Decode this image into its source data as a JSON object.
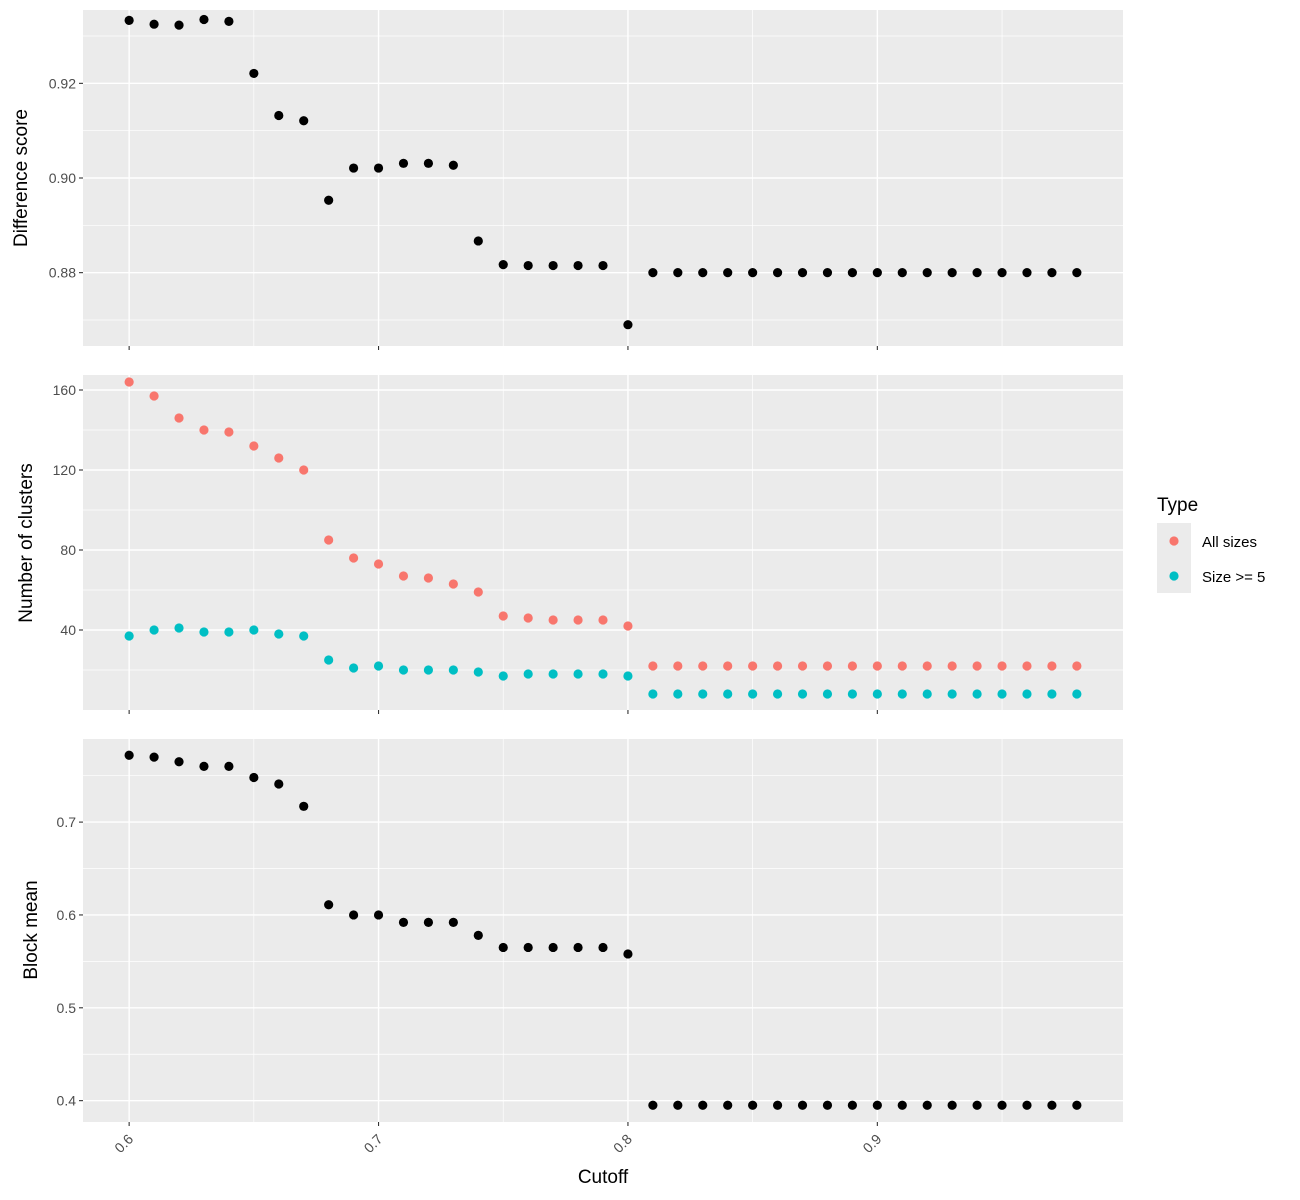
{
  "chart_data": [
    {
      "type": "scatter",
      "ylabel": "Difference score",
      "ylim": [
        0.8645,
        0.9355
      ],
      "y_ticks": [
        "0.88",
        "0.90",
        "0.92"
      ],
      "grid": true,
      "series": [
        {
          "color": "#000000",
          "points": [
            [
              0.6,
              0.9333
            ],
            [
              0.61,
              0.9325
            ],
            [
              0.62,
              0.9323
            ],
            [
              0.63,
              0.9335
            ],
            [
              0.64,
              0.9331
            ],
            [
              0.65,
              0.9221
            ],
            [
              0.66,
              0.9132
            ],
            [
              0.67,
              0.9121
            ],
            [
              0.68,
              0.8953
            ],
            [
              0.69,
              0.9021
            ],
            [
              0.7,
              0.9021
            ],
            [
              0.71,
              0.9031
            ],
            [
              0.72,
              0.9031
            ],
            [
              0.73,
              0.9027
            ],
            [
              0.74,
              0.8867
            ],
            [
              0.75,
              0.8817
            ],
            [
              0.76,
              0.8815
            ],
            [
              0.77,
              0.8815
            ],
            [
              0.78,
              0.8815
            ],
            [
              0.79,
              0.8815
            ],
            [
              0.8,
              0.869
            ],
            [
              0.81,
              0.88
            ],
            [
              0.82,
              0.88
            ],
            [
              0.83,
              0.88
            ],
            [
              0.84,
              0.88
            ],
            [
              0.85,
              0.88
            ],
            [
              0.86,
              0.88
            ],
            [
              0.87,
              0.88
            ],
            [
              0.88,
              0.88
            ],
            [
              0.89,
              0.88
            ],
            [
              0.9,
              0.88
            ],
            [
              0.91,
              0.88
            ],
            [
              0.92,
              0.88
            ],
            [
              0.93,
              0.88
            ],
            [
              0.94,
              0.88
            ],
            [
              0.95,
              0.88
            ],
            [
              0.96,
              0.88
            ],
            [
              0.97,
              0.88
            ],
            [
              0.98,
              0.88
            ]
          ]
        }
      ]
    },
    {
      "type": "scatter",
      "ylabel": "Number of clusters",
      "ylim": [
        0,
        167.5
      ],
      "y_ticks": [
        "40",
        "80",
        "120",
        "160"
      ],
      "grid": true,
      "series": [
        {
          "name": "All sizes",
          "color": "#F8766D",
          "points": [
            [
              0.6,
              164
            ],
            [
              0.61,
              157
            ],
            [
              0.62,
              146
            ],
            [
              0.63,
              140
            ],
            [
              0.64,
              139
            ],
            [
              0.65,
              132
            ],
            [
              0.66,
              126
            ],
            [
              0.67,
              120
            ],
            [
              0.68,
              85
            ],
            [
              0.69,
              76
            ],
            [
              0.7,
              73
            ],
            [
              0.71,
              67
            ],
            [
              0.72,
              66
            ],
            [
              0.73,
              63
            ],
            [
              0.74,
              59
            ],
            [
              0.75,
              47
            ],
            [
              0.76,
              46
            ],
            [
              0.77,
              45
            ],
            [
              0.78,
              45
            ],
            [
              0.79,
              45
            ],
            [
              0.8,
              42
            ],
            [
              0.81,
              22
            ],
            [
              0.82,
              22
            ],
            [
              0.83,
              22
            ],
            [
              0.84,
              22
            ],
            [
              0.85,
              22
            ],
            [
              0.86,
              22
            ],
            [
              0.87,
              22
            ],
            [
              0.88,
              22
            ],
            [
              0.89,
              22
            ],
            [
              0.9,
              22
            ],
            [
              0.91,
              22
            ],
            [
              0.92,
              22
            ],
            [
              0.93,
              22
            ],
            [
              0.94,
              22
            ],
            [
              0.95,
              22
            ],
            [
              0.96,
              22
            ],
            [
              0.97,
              22
            ],
            [
              0.98,
              22
            ]
          ]
        },
        {
          "name": "Size >= 5",
          "color": "#00BFC4",
          "points": [
            [
              0.6,
              37
            ],
            [
              0.61,
              40
            ],
            [
              0.62,
              41
            ],
            [
              0.63,
              39
            ],
            [
              0.64,
              39
            ],
            [
              0.65,
              40
            ],
            [
              0.66,
              38
            ],
            [
              0.67,
              37
            ],
            [
              0.68,
              25
            ],
            [
              0.69,
              21
            ],
            [
              0.7,
              22
            ],
            [
              0.71,
              20
            ],
            [
              0.72,
              20
            ],
            [
              0.73,
              20
            ],
            [
              0.74,
              19
            ],
            [
              0.75,
              17
            ],
            [
              0.76,
              18
            ],
            [
              0.77,
              18
            ],
            [
              0.78,
              18
            ],
            [
              0.79,
              18
            ],
            [
              0.8,
              17
            ],
            [
              0.81,
              8
            ],
            [
              0.82,
              8
            ],
            [
              0.83,
              8
            ],
            [
              0.84,
              8
            ],
            [
              0.85,
              8
            ],
            [
              0.86,
              8
            ],
            [
              0.87,
              8
            ],
            [
              0.88,
              8
            ],
            [
              0.89,
              8
            ],
            [
              0.9,
              8
            ],
            [
              0.91,
              8
            ],
            [
              0.92,
              8
            ],
            [
              0.93,
              8
            ],
            [
              0.94,
              8
            ],
            [
              0.95,
              8
            ],
            [
              0.96,
              8
            ],
            [
              0.97,
              8
            ],
            [
              0.98,
              8
            ]
          ]
        }
      ]
    },
    {
      "type": "scatter",
      "ylabel": "Block mean",
      "xlabel": "Cutoff",
      "ylim": [
        0.377,
        0.7895
      ],
      "y_ticks": [
        "0.4",
        "0.5",
        "0.6",
        "0.7"
      ],
      "grid": true,
      "series": [
        {
          "color": "#000000",
          "points": [
            [
              0.6,
              0.772
            ],
            [
              0.61,
              0.77
            ],
            [
              0.62,
              0.765
            ],
            [
              0.63,
              0.76
            ],
            [
              0.64,
              0.76
            ],
            [
              0.65,
              0.748
            ],
            [
              0.66,
              0.741
            ],
            [
              0.67,
              0.717
            ],
            [
              0.68,
              0.611
            ],
            [
              0.69,
              0.6
            ],
            [
              0.7,
              0.6
            ],
            [
              0.71,
              0.592
            ],
            [
              0.72,
              0.592
            ],
            [
              0.73,
              0.592
            ],
            [
              0.74,
              0.578
            ],
            [
              0.75,
              0.565
            ],
            [
              0.76,
              0.565
            ],
            [
              0.77,
              0.565
            ],
            [
              0.78,
              0.565
            ],
            [
              0.79,
              0.565
            ],
            [
              0.8,
              0.558
            ],
            [
              0.81,
              0.395
            ],
            [
              0.82,
              0.395
            ],
            [
              0.83,
              0.395
            ],
            [
              0.84,
              0.395
            ],
            [
              0.85,
              0.395
            ],
            [
              0.86,
              0.395
            ],
            [
              0.87,
              0.395
            ],
            [
              0.88,
              0.395
            ],
            [
              0.89,
              0.395
            ],
            [
              0.9,
              0.395
            ],
            [
              0.91,
              0.395
            ],
            [
              0.92,
              0.395
            ],
            [
              0.93,
              0.395
            ],
            [
              0.94,
              0.395
            ],
            [
              0.95,
              0.395
            ],
            [
              0.96,
              0.395
            ],
            [
              0.97,
              0.395
            ],
            [
              0.98,
              0.395
            ]
          ]
        }
      ]
    }
  ],
  "x_axis": {
    "title": "Cutoff",
    "range": [
      0.5815,
      0.9985
    ],
    "ticks": [
      "0.6",
      "0.7",
      "0.8",
      "0.9"
    ]
  },
  "legend": {
    "title": "Type",
    "position": "right",
    "items": [
      {
        "label": "All sizes",
        "color": "#F8766D"
      },
      {
        "label": "Size >= 5",
        "color": "#00BFC4"
      }
    ]
  }
}
